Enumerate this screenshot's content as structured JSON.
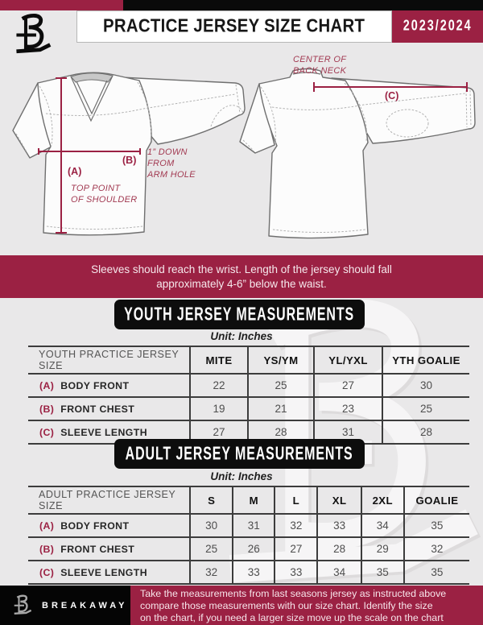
{
  "header": {
    "title": "PRACTICE JERSEY SIZE CHART",
    "season": "2023/2024",
    "logo": "breakaway-b-logo"
  },
  "diagram": {
    "a_key": "(A)",
    "a_desc1": "TOP POINT",
    "a_desc2": "OF SHOULDER",
    "b_key": "(B)",
    "b_desc1": "1” DOWN",
    "b_desc2": "FROM",
    "b_desc3": "ARM HOLE",
    "c_key": "(C)",
    "c_desc1": "CENTER OF",
    "c_desc2": "BACK NECK"
  },
  "notice": {
    "line1": "Sleeves should reach the wrist. Length of the jersey should fall",
    "line2": "approximately 4-6” below the waist."
  },
  "youth": {
    "banner": "YOUTH JERSEY MEASUREMENTS",
    "unit": "Unit: Inches",
    "table": {
      "header": [
        "YOUTH PRACTICE JERSEY SIZE",
        "MITE",
        "YS/YM",
        "YL/YXL",
        "YTH GOALIE"
      ],
      "rows": [
        {
          "key": "(A)",
          "label": "BODY FRONT",
          "values": [
            "22",
            "25",
            "27",
            "30"
          ]
        },
        {
          "key": "(B)",
          "label": "FRONT CHEST",
          "values": [
            "19",
            "21",
            "23",
            "25"
          ]
        },
        {
          "key": "(C)",
          "label": "SLEEVE LENGTH",
          "values": [
            "27",
            "28",
            "31",
            "28"
          ]
        }
      ]
    }
  },
  "adult": {
    "banner": "ADULT JERSEY MEASUREMENTS",
    "unit": "Unit: Inches",
    "table": {
      "header": [
        "ADULT PRACTICE JERSEY SIZE",
        "S",
        "M",
        "L",
        "XL",
        "2XL",
        "GOALIE"
      ],
      "rows": [
        {
          "key": "(A)",
          "label": "BODY FRONT",
          "values": [
            "30",
            "31",
            "32",
            "33",
            "34",
            "35"
          ]
        },
        {
          "key": "(B)",
          "label": "FRONT CHEST",
          "values": [
            "25",
            "26",
            "27",
            "28",
            "29",
            "32"
          ]
        },
        {
          "key": "(C)",
          "label": "SLEEVE LENGTH",
          "values": [
            "32",
            "33",
            "33",
            "34",
            "35",
            "35"
          ]
        }
      ]
    }
  },
  "footer": {
    "brand": "BREAKAWAY",
    "note1": "Take the measurements from last seasons jersey as instructed above",
    "note2": "compare those measurements with our size chart. Identify the size",
    "note3": "on the chart, if you need a larger size move up the scale on the chart"
  },
  "colors": {
    "maroon": "#9b2143",
    "banner_black": "#0d0d0d",
    "page_background": "#e9e8e9"
  }
}
